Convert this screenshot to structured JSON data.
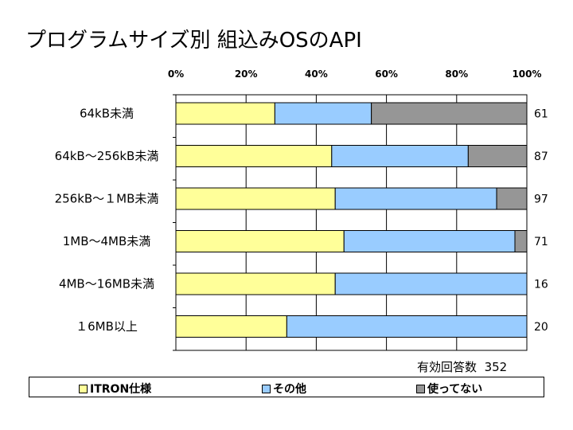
{
  "title": "プログラムサイズ別 組込みOSのAPI",
  "total_label": "有効回答数",
  "total_value": "352",
  "colors": {
    "itron": "#FFFF99",
    "other": "#99CCFF",
    "unused": "#969696"
  },
  "chart_data": {
    "type": "bar",
    "orientation": "horizontal",
    "stacked": "percent",
    "title": "プログラムサイズ別 組込みOSのAPI",
    "xlim": [
      0,
      100
    ],
    "x_ticks": [
      "0%",
      "20%",
      "40%",
      "60%",
      "80%",
      "100%"
    ],
    "categories": [
      "64kB未満",
      "64kB～256kB未満",
      "256kB～1MB未満",
      "1MB～4MB未満",
      "4MB～16MB未満",
      "16MB以上"
    ],
    "category_labels": [
      "64kB未満",
      "64kB～256kB未満",
      "256kB～１MB未満",
      "1MB～4MB未満",
      "4MB～16MB未満",
      "１6MB以上"
    ],
    "counts": [
      "61",
      "87",
      "97",
      "71",
      "16",
      "20"
    ],
    "series": [
      {
        "name": "ITRON仕様",
        "values": [
          28.2,
          44.4,
          45.4,
          47.9,
          45.4,
          31.6
        ]
      },
      {
        "name": "その他",
        "values": [
          27.5,
          38.9,
          46.0,
          48.7,
          54.6,
          68.4
        ]
      },
      {
        "name": "使ってない",
        "values": [
          44.3,
          16.7,
          8.6,
          3.4,
          0,
          0
        ]
      }
    ],
    "grid": true,
    "legend": "bottom"
  }
}
